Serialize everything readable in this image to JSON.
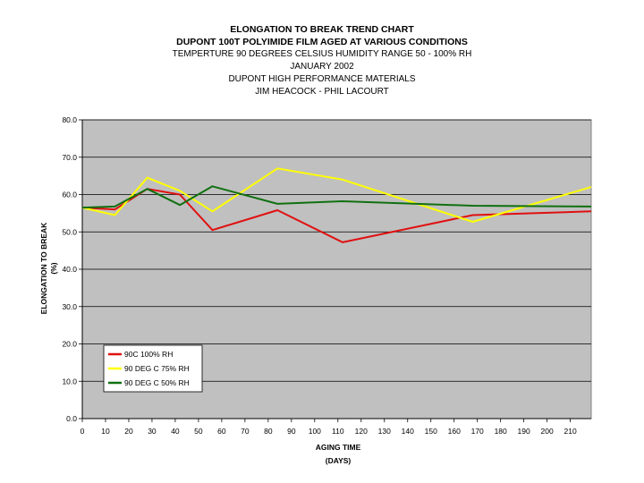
{
  "titles": [
    "ELONGATION TO BREAK TREND CHART",
    "DUPONT 100T POLYIMIDE FILM AGED AT VARIOUS CONDITIONS",
    "TEMPERTURE  90  DEGREES CELSIUS  HUMIDITY RANGE 50 - 100% RH",
    "JANUARY 2002",
    "DUPONT HIGH PERFORMANCE MATERIALS",
    "JIM HEACOCK - PHIL LACOURT"
  ],
  "chart_data": {
    "type": "line",
    "title": "ELONGATION TO BREAK TREND CHART",
    "xlabel_lines": [
      "AGING TIME",
      "(DAYS)"
    ],
    "ylabel_lines": [
      "ELONGATION TO BREAK",
      "(%)"
    ],
    "xlim": [
      0,
      219
    ],
    "ylim": [
      0,
      80
    ],
    "xticks": [
      0,
      10,
      20,
      30,
      40,
      50,
      60,
      70,
      80,
      90,
      100,
      110,
      120,
      130,
      140,
      150,
      160,
      170,
      180,
      190,
      200,
      210
    ],
    "yticks": [
      0,
      10,
      20,
      30,
      40,
      50,
      60,
      70,
      80
    ],
    "ytick_labels": [
      "0.0",
      "10.0",
      "20.0",
      "30.0",
      "40.0",
      "50.0",
      "60.0",
      "70.0",
      "80.0"
    ],
    "grid": "horizontal",
    "legend_position": "lower-left",
    "plot_background": "#c0c0c0",
    "series": [
      {
        "name": "90C 100% RH",
        "color": "#e01010",
        "points": [
          [
            0,
            56.5
          ],
          [
            14,
            56.0
          ],
          [
            28,
            61.5
          ],
          [
            42,
            60.0
          ],
          [
            56,
            50.5
          ],
          [
            84,
            55.8
          ],
          [
            112,
            47.2
          ],
          [
            168,
            54.5
          ],
          [
            219,
            55.5
          ]
        ]
      },
      {
        "name": "90 DEG C 75% RH",
        "color": "#ffff00",
        "points": [
          [
            0,
            56.5
          ],
          [
            14,
            54.5
          ],
          [
            28,
            64.5
          ],
          [
            42,
            61.0
          ],
          [
            56,
            55.5
          ],
          [
            84,
            67.0
          ],
          [
            112,
            64.0
          ],
          [
            168,
            52.7
          ],
          [
            219,
            62.0
          ]
        ]
      },
      {
        "name": "90 DEG C 50% RH",
        "color": "#107010",
        "points": [
          [
            0,
            56.5
          ],
          [
            14,
            56.8
          ],
          [
            28,
            61.5
          ],
          [
            42,
            57.2
          ],
          [
            56,
            62.2
          ],
          [
            84,
            57.5
          ],
          [
            112,
            58.2
          ],
          [
            168,
            57.0
          ],
          [
            219,
            56.8
          ]
        ]
      }
    ]
  }
}
